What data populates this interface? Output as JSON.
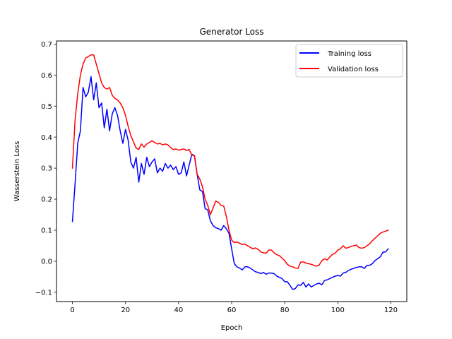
{
  "chart_data": {
    "type": "line",
    "title": "Generator Loss",
    "xlabel": "Epoch",
    "ylabel": "Wasserstein Loss",
    "xlim": [
      -6,
      126
    ],
    "ylim": [
      -0.13,
      0.71
    ],
    "xticks": [
      0,
      20,
      40,
      60,
      80,
      100,
      120
    ],
    "yticks": [
      -0.1,
      0.0,
      0.1,
      0.2,
      0.3,
      0.4,
      0.5,
      0.6,
      0.7
    ],
    "ytick_labels": [
      "−0.1",
      "0.0",
      "0.1",
      "0.2",
      "0.3",
      "0.4",
      "0.5",
      "0.6",
      "0.7"
    ],
    "grid": false,
    "legend_position": "top-right",
    "series": [
      {
        "name": "Training loss",
        "color": "#0000ff",
        "x": [
          0,
          1,
          2,
          3,
          4,
          5,
          6,
          7,
          8,
          9,
          10,
          11,
          12,
          13,
          14,
          15,
          16,
          17,
          18,
          19,
          20,
          21,
          22,
          23,
          24,
          25,
          26,
          27,
          28,
          29,
          30,
          31,
          32,
          33,
          34,
          35,
          36,
          37,
          38,
          39,
          40,
          41,
          42,
          43,
          44,
          45,
          46,
          47,
          48,
          49,
          50,
          51,
          52,
          53,
          54,
          55,
          56,
          57,
          58,
          59,
          60,
          61,
          62,
          63,
          64,
          65,
          66,
          67,
          68,
          69,
          70,
          71,
          72,
          73,
          74,
          75,
          76,
          77,
          78,
          79,
          80,
          81,
          82,
          83,
          84,
          85,
          86,
          87,
          88,
          89,
          90,
          91,
          92,
          93,
          94,
          95,
          96,
          97,
          98,
          99,
          100,
          101,
          102,
          103,
          104,
          105,
          106,
          107,
          108,
          109,
          110,
          111,
          112,
          113,
          114,
          115,
          116,
          117,
          118,
          119
        ],
        "y": [
          0.128,
          0.25,
          0.38,
          0.42,
          0.56,
          0.53,
          0.545,
          0.595,
          0.52,
          0.575,
          0.495,
          0.51,
          0.43,
          0.49,
          0.42,
          0.475,
          0.495,
          0.47,
          0.42,
          0.38,
          0.425,
          0.39,
          0.32,
          0.3,
          0.335,
          0.255,
          0.315,
          0.28,
          0.335,
          0.305,
          0.32,
          0.33,
          0.285,
          0.3,
          0.29,
          0.315,
          0.3,
          0.31,
          0.295,
          0.305,
          0.28,
          0.285,
          0.32,
          0.275,
          0.31,
          0.345,
          0.34,
          0.28,
          0.23,
          0.225,
          0.17,
          0.165,
          0.13,
          0.115,
          0.108,
          0.105,
          0.1,
          0.115,
          0.105,
          0.09,
          0.04,
          -0.008,
          -0.018,
          -0.022,
          -0.028,
          -0.018,
          -0.018,
          -0.022,
          -0.028,
          -0.034,
          -0.036,
          -0.04,
          -0.036,
          -0.042,
          -0.038,
          -0.038,
          -0.04,
          -0.048,
          -0.052,
          -0.056,
          -0.066,
          -0.066,
          -0.078,
          -0.091,
          -0.088,
          -0.076,
          -0.078,
          -0.068,
          -0.083,
          -0.073,
          -0.083,
          -0.078,
          -0.073,
          -0.071,
          -0.076,
          -0.062,
          -0.06,
          -0.056,
          -0.052,
          -0.048,
          -0.046,
          -0.048,
          -0.038,
          -0.036,
          -0.03,
          -0.026,
          -0.023,
          -0.02,
          -0.018,
          -0.018,
          -0.023,
          -0.013,
          -0.013,
          -0.008,
          0.002,
          0.008,
          0.014,
          0.029,
          0.03,
          0.04
        ]
      },
      {
        "name": "Validation loss",
        "color": "#ff0000",
        "x": [
          0,
          1,
          2,
          3,
          4,
          5,
          6,
          7,
          8,
          9,
          10,
          11,
          12,
          13,
          14,
          15,
          16,
          17,
          18,
          19,
          20,
          21,
          22,
          23,
          24,
          25,
          26,
          27,
          28,
          29,
          30,
          31,
          32,
          33,
          34,
          35,
          36,
          37,
          38,
          39,
          40,
          41,
          42,
          43,
          44,
          45,
          46,
          47,
          48,
          49,
          50,
          51,
          52,
          53,
          54,
          55,
          56,
          57,
          58,
          59,
          60,
          61,
          62,
          63,
          64,
          65,
          66,
          67,
          68,
          69,
          70,
          71,
          72,
          73,
          74,
          75,
          76,
          77,
          78,
          79,
          80,
          81,
          82,
          83,
          84,
          85,
          86,
          87,
          88,
          89,
          90,
          91,
          92,
          93,
          94,
          95,
          96,
          97,
          98,
          99,
          100,
          101,
          102,
          103,
          104,
          105,
          106,
          107,
          108,
          109,
          110,
          111,
          112,
          113,
          114,
          115,
          116,
          117,
          118,
          119
        ],
        "y": [
          0.3,
          0.455,
          0.54,
          0.6,
          0.635,
          0.655,
          0.66,
          0.665,
          0.665,
          0.635,
          0.605,
          0.575,
          0.56,
          0.555,
          0.56,
          0.535,
          0.525,
          0.52,
          0.51,
          0.495,
          0.47,
          0.435,
          0.405,
          0.385,
          0.365,
          0.36,
          0.378,
          0.368,
          0.378,
          0.383,
          0.388,
          0.383,
          0.378,
          0.38,
          0.375,
          0.378,
          0.375,
          0.366,
          0.36,
          0.362,
          0.358,
          0.36,
          0.362,
          0.357,
          0.36,
          0.342,
          0.34,
          0.28,
          0.265,
          0.24,
          0.2,
          0.18,
          0.15,
          0.172,
          0.194,
          0.19,
          0.18,
          0.178,
          0.145,
          0.1,
          0.068,
          0.06,
          0.062,
          0.058,
          0.054,
          0.055,
          0.05,
          0.045,
          0.04,
          0.043,
          0.038,
          0.03,
          0.027,
          0.026,
          0.036,
          0.036,
          0.027,
          0.021,
          0.018,
          0.01,
          0.002,
          -0.01,
          -0.016,
          -0.018,
          -0.022,
          -0.023,
          -0.003,
          -0.002,
          -0.006,
          -0.008,
          -0.01,
          -0.013,
          -0.016,
          -0.012,
          0.002,
          0.008,
          0.004,
          0.014,
          0.022,
          0.026,
          0.036,
          0.04,
          0.05,
          0.042,
          0.044,
          0.048,
          0.05,
          0.052,
          0.044,
          0.042,
          0.044,
          0.05,
          0.056,
          0.066,
          0.074,
          0.082,
          0.09,
          0.094,
          0.097,
          0.1
        ]
      }
    ]
  }
}
